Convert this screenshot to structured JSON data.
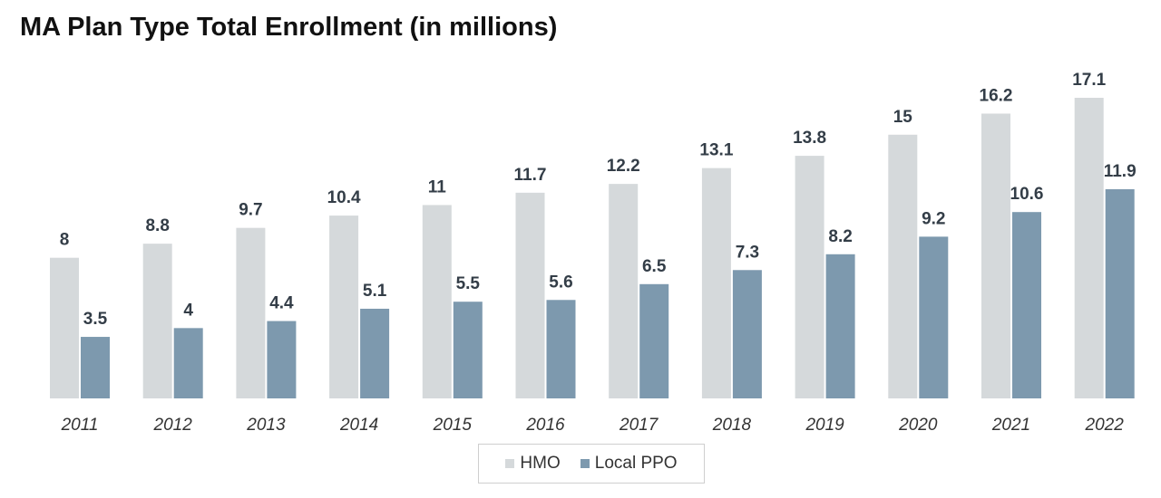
{
  "chart_data": {
    "type": "bar",
    "title": "MA Plan Type Total Enrollment (in millions)",
    "xlabel": "",
    "ylabel": "",
    "categories": [
      "2011",
      "2012",
      "2013",
      "2014",
      "2015",
      "2016",
      "2017",
      "2018",
      "2019",
      "2020",
      "2021",
      "2022"
    ],
    "series": [
      {
        "name": "HMO",
        "color": "#d5d9db",
        "values": [
          8,
          8.8,
          9.7,
          10.4,
          11,
          11.7,
          12.2,
          13.1,
          13.8,
          15,
          16.2,
          17.1
        ]
      },
      {
        "name": "Local PPO",
        "color": "#7d99ae",
        "values": [
          3.5,
          4,
          4.4,
          5.1,
          5.5,
          5.6,
          6.5,
          7.3,
          8.2,
          9.2,
          10.6,
          11.9
        ]
      }
    ],
    "ylim": [
      0,
      17.1
    ],
    "grid": false,
    "legend_position": "bottom"
  }
}
